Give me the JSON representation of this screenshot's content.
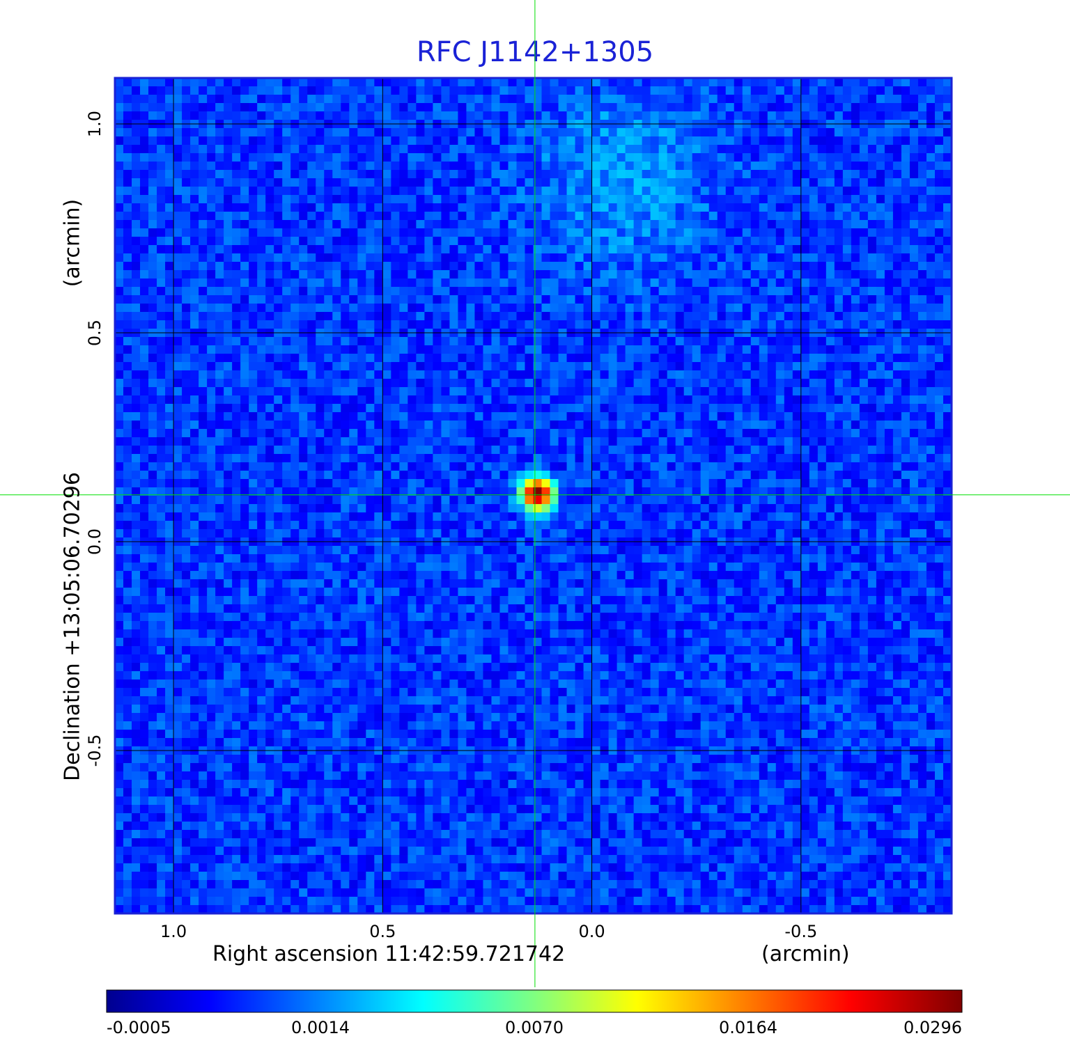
{
  "chart_data": {
    "type": "heatmap",
    "title": "RFC J1142+1305",
    "xlabel": "Right ascension  11:42:59.721742",
    "xunit": "(arcmin)",
    "ylabel": "Declination  +13:05:06.70296",
    "yunit": "(arcmin)",
    "x_ticks": [
      1.0,
      0.5,
      0.0,
      -0.5
    ],
    "x_tick_labels": [
      "1.0",
      "0.5",
      "0.0",
      "-0.5"
    ],
    "y_ticks": [
      1.0,
      0.5,
      0.0,
      -0.5
    ],
    "y_tick_labels": [
      "1.0",
      "0.5",
      "0.0",
      "-0.5"
    ],
    "xlim": [
      1.14,
      -0.86
    ],
    "ylim": [
      -0.89,
      1.11
    ],
    "grid": true,
    "colormap": "jet",
    "colorbar": {
      "ticks": [
        "-0.0005",
        "0.0014",
        "0.0070",
        "0.0164",
        "0.0296"
      ],
      "min": -0.0005,
      "max": 0.0296
    },
    "crosshair": {
      "x": 0.136,
      "y": 0.112
    },
    "source_peak": {
      "x": 0.13,
      "y": 0.115,
      "value": 0.0296
    },
    "background_level": 0.0003,
    "diffuse_emission": {
      "x": -0.08,
      "y": 0.87,
      "value": 0.0009
    }
  },
  "colors": {
    "title": "#1a22d6",
    "crosshair": "#00e000",
    "grid": "#000000",
    "frame": "#1a22d6"
  }
}
